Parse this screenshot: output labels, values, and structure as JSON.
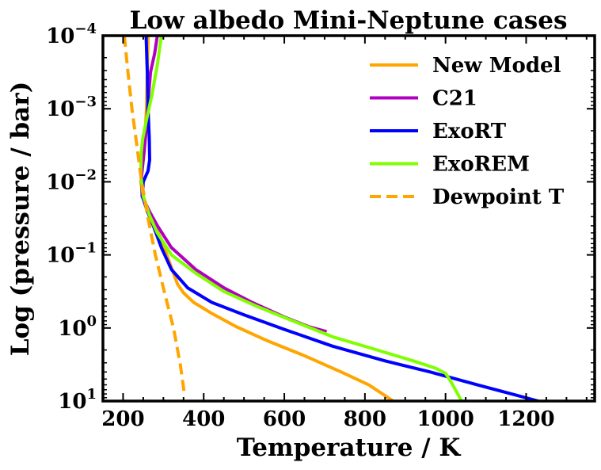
{
  "chart_data": {
    "type": "line",
    "title": "Low albedo Mini-Neptune cases",
    "xlabel": "Temperature / K",
    "ylabel": "Log (pressure / bar)",
    "xlim": [
      150,
      1370
    ],
    "ylim_log10_pressure": [
      -4,
      1
    ],
    "y_inverted": true,
    "y_scale": "log",
    "grid": false,
    "legend_position": "top-right",
    "xticks": [
      200,
      400,
      600,
      800,
      1000,
      1200
    ],
    "xtick_labels": [
      "200",
      "400",
      "600",
      "800",
      "1000",
      "1200"
    ],
    "yticks_log10": [
      -4,
      -3,
      -2,
      -1,
      0,
      1
    ],
    "ytick_labels": [
      {
        "base": "10",
        "exp": "−4"
      },
      {
        "base": "10",
        "exp": "−3"
      },
      {
        "base": "10",
        "exp": "−2"
      },
      {
        "base": "10",
        "exp": "−1"
      },
      {
        "base": "10",
        "exp": "0"
      },
      {
        "base": "10",
        "exp": "1"
      }
    ],
    "series": [
      {
        "name": "New Model",
        "color": "#FFA500",
        "dash": "solid",
        "points": [
          [
            262,
            -4
          ],
          [
            260,
            -3.5
          ],
          [
            258,
            -3
          ],
          [
            253,
            -2.5
          ],
          [
            248,
            -2.2
          ],
          [
            244,
            -2
          ],
          [
            250,
            -1.8
          ],
          [
            262,
            -1.6
          ],
          [
            278,
            -1.4
          ],
          [
            296,
            -1.2
          ],
          [
            315,
            -0.9
          ],
          [
            335,
            -0.6
          ],
          [
            350,
            -0.48
          ],
          [
            375,
            -0.35
          ],
          [
            420,
            -0.2
          ],
          [
            480,
            -0.02
          ],
          [
            560,
            0.18
          ],
          [
            650,
            0.38
          ],
          [
            740,
            0.6
          ],
          [
            810,
            0.78
          ],
          [
            870,
            1.0
          ]
        ]
      },
      {
        "name": "C21",
        "color": "#B000C0",
        "dash": "solid",
        "points": [
          [
            285,
            -4
          ],
          [
            278,
            -3.75
          ],
          [
            268,
            -3.5
          ],
          [
            262,
            -3.1
          ],
          [
            257,
            -2.7
          ],
          [
            252,
            -2.4
          ],
          [
            246,
            -2.1
          ],
          [
            247,
            -1.8
          ],
          [
            265,
            -1.6
          ],
          [
            285,
            -1.4
          ],
          [
            320,
            -1.1
          ],
          [
            380,
            -0.8
          ],
          [
            450,
            -0.55
          ],
          [
            520,
            -0.35
          ],
          [
            600,
            -0.15
          ],
          [
            660,
            -0.02
          ],
          [
            705,
            0.05
          ]
        ]
      },
      {
        "name": "ExoRT",
        "color": "#0000FF",
        "dash": "solid",
        "points": [
          [
            257,
            -4
          ],
          [
            260,
            -3.5
          ],
          [
            262,
            -3
          ],
          [
            265,
            -2.6
          ],
          [
            266,
            -2.3
          ],
          [
            262,
            -2.15
          ],
          [
            250,
            -2
          ],
          [
            248,
            -1.8
          ],
          [
            260,
            -1.6
          ],
          [
            275,
            -1.4
          ],
          [
            295,
            -1.1
          ],
          [
            320,
            -0.8
          ],
          [
            360,
            -0.55
          ],
          [
            420,
            -0.35
          ],
          [
            500,
            -0.18
          ],
          [
            600,
            0.02
          ],
          [
            720,
            0.25
          ],
          [
            850,
            0.45
          ],
          [
            960,
            0.6
          ],
          [
            1080,
            0.78
          ],
          [
            1230,
            1.0
          ]
        ]
      },
      {
        "name": "ExoREM",
        "color": "#80FF00",
        "dash": "solid",
        "points": [
          [
            295,
            -4
          ],
          [
            285,
            -3.6
          ],
          [
            272,
            -3.2
          ],
          [
            260,
            -2.9
          ],
          [
            249,
            -2.6
          ],
          [
            245,
            -2.4
          ],
          [
            244,
            -2.1
          ],
          [
            250,
            -1.8
          ],
          [
            265,
            -1.55
          ],
          [
            285,
            -1.3
          ],
          [
            320,
            -1.0
          ],
          [
            380,
            -0.75
          ],
          [
            450,
            -0.5
          ],
          [
            530,
            -0.3
          ],
          [
            620,
            -0.1
          ],
          [
            720,
            0.12
          ],
          [
            830,
            0.3
          ],
          [
            920,
            0.45
          ],
          [
            975,
            0.55
          ],
          [
            1000,
            0.62
          ],
          [
            1015,
            0.75
          ],
          [
            1030,
            0.9
          ],
          [
            1040,
            1.0
          ]
        ]
      },
      {
        "name": "Dewpoint T",
        "color": "#FFA500",
        "dash": "dashed",
        "points": [
          [
            203,
            -4
          ],
          [
            212,
            -3.5
          ],
          [
            222,
            -3
          ],
          [
            234,
            -2.5
          ],
          [
            246,
            -2
          ],
          [
            262,
            -1.5
          ],
          [
            280,
            -1
          ],
          [
            302,
            -0.5
          ],
          [
            325,
            0
          ],
          [
            342,
            0.5
          ],
          [
            352,
            0.9
          ]
        ]
      }
    ]
  }
}
